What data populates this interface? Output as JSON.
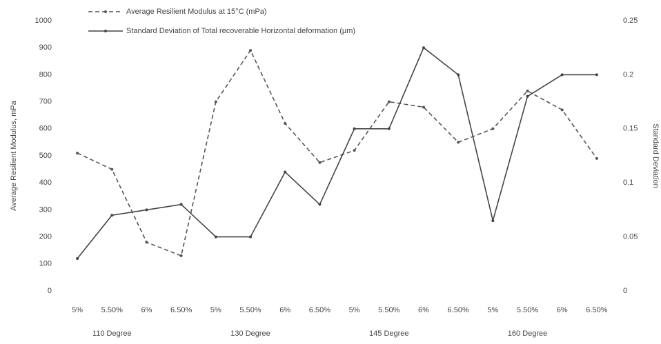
{
  "chart_data": {
    "type": "line",
    "categories": [
      "5%",
      "5.50%",
      "6%",
      "6.50%",
      "5%",
      "5.50%",
      "6%",
      "6.50%",
      "5%",
      "5.50%",
      "6%",
      "6.50%",
      "5%",
      "5.50%",
      "6%",
      "6.50%"
    ],
    "groups": [
      "110 Degree",
      "130 Degree",
      "145 Degree",
      "160 Degree"
    ],
    "ylabel": "Average Resilient Modulus, mPa",
    "y2label": "Standard Deviation",
    "ylim": [
      0,
      1000
    ],
    "yticks": [
      0,
      100,
      200,
      300,
      400,
      500,
      600,
      700,
      800,
      900,
      1000
    ],
    "y2lim": [
      0,
      0.25
    ],
    "y2ticks": [
      0,
      0.05,
      0.1,
      0.15,
      0.2,
      0.25
    ],
    "grid": false,
    "legend": "top",
    "series": [
      {
        "name": "Average Resilient Modulus at 15°C (mPa)",
        "color": "#555555",
        "dashed": true,
        "values": [
          510,
          450,
          180,
          130,
          700,
          890,
          620,
          475,
          520,
          700,
          680,
          550,
          600,
          740,
          670,
          490
        ]
      },
      {
        "name": "Standard Deviation of Total recoverable Horizontal deformation (µm)",
        "color": "#444444",
        "dashed": false,
        "axis": "y2",
        "values": [
          0.03,
          0.07,
          0.075,
          0.08,
          0.05,
          0.05,
          0.11,
          0.08,
          0.15,
          0.15,
          0.225,
          0.2,
          0.065,
          0.18,
          0.2,
          0.2
        ]
      }
    ]
  }
}
